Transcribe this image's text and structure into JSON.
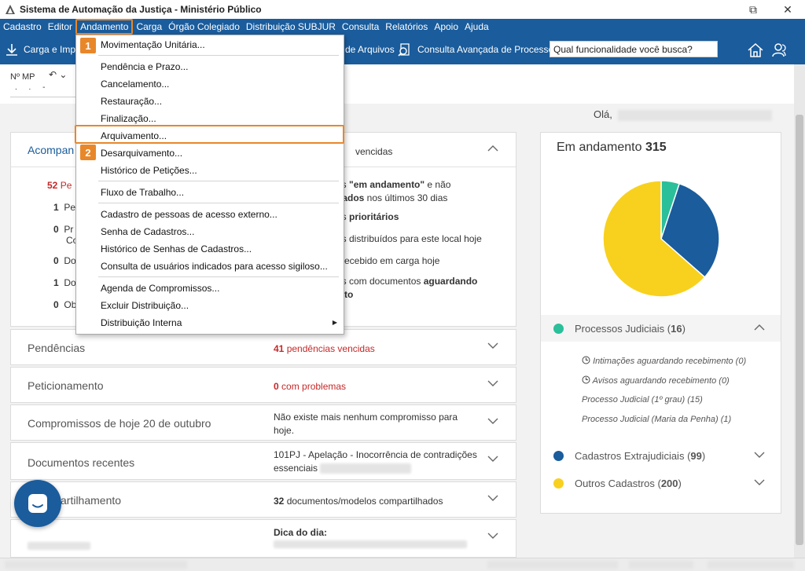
{
  "window": {
    "title": "Sistema de Automação da Justiça - Ministério Público",
    "restore": "⧉",
    "close": "✕"
  },
  "menubar": {
    "items": [
      "Cadastro",
      "Editor",
      "Andamento",
      "Carga",
      "Órgão Colegiado",
      "Distribuição SUBJUR",
      "Consulta",
      "Relatórios",
      "Apoio",
      "Ajuda"
    ],
    "active": "Andamento"
  },
  "toolbar": {
    "carga": "Carga e Impo",
    "arquivos": "de Arquivos",
    "consulta": "Consulta Avançada de Processos",
    "search_value": "Qual funcionalidade você busca?"
  },
  "subheader": {
    "nmp_label": "Nº MP",
    "nmp_mask": ". . -"
  },
  "greeting": "Olá,",
  "dropdown": {
    "items": [
      {
        "label": "Movimentação Unitária..."
      },
      {
        "label": "Pendência e Prazo..."
      },
      {
        "label": "Cancelamento..."
      },
      {
        "label": "Restauração..."
      },
      {
        "label": "Finalização..."
      },
      {
        "label": "Arquivamento..."
      },
      {
        "label": "Desarquivamento..."
      },
      {
        "label": "Histórico de Petições..."
      },
      {
        "label": "Fluxo de Trabalho..."
      },
      {
        "label": "Cadastro de pessoas de acesso externo..."
      },
      {
        "label": "Senha de Cadastros..."
      },
      {
        "label": "Histórico de Senhas de Cadastros..."
      },
      {
        "label": "Consulta de usuários indicados para acesso sigiloso..."
      },
      {
        "label": "Agenda de Compromissos..."
      },
      {
        "label": "Excluir Distribuição..."
      },
      {
        "label": "Distribuição Interna"
      }
    ],
    "badges": [
      "1",
      "2"
    ]
  },
  "acompanhamento": {
    "title": "Acompan",
    "header_info": "vencidas",
    "rows": [
      {
        "count": "52",
        "label": "Pe",
        "info": ""
      },
      {
        "count": "1",
        "label": "Pe",
        "info": ""
      },
      {
        "count": "0",
        "label": "Pr",
        "label2": "Co",
        "info": ""
      },
      {
        "count": "0",
        "label": "Do",
        "info": ""
      },
      {
        "count": "1",
        "label": "Do",
        "info": ""
      },
      {
        "count": "0",
        "label": "Ob",
        "info": ""
      }
    ],
    "info_lines": {
      "l1a": "ros ",
      "l1b": "\"em andamento\"",
      "l1c": " e não",
      "l2a": "ntados",
      "l2b": " nos últimos 30 dias",
      "l3a": "ros ",
      "l3b": "prioritários",
      "l4": "ros distribuídos para este local hoje",
      "l5": "o recebido em carga hoje",
      "l6a": "ros com documentos ",
      "l6b": "aguardando",
      "l7": "ento"
    }
  },
  "cards": [
    {
      "title": "Pendências",
      "info_count": "41",
      "info_text": " pendências vencidas"
    },
    {
      "title": "Peticionamento",
      "info_count": "0",
      "info_text": " com problemas"
    },
    {
      "title": "Compromissos de hoje 20 de outubro",
      "info_text": "Não existe mais nenhum compromisso para hoje."
    },
    {
      "title": "Documentos recentes",
      "info_text": "101PJ - Apelação - Inocorrência de contradições essenciais"
    },
    {
      "title": "artilhamento",
      "info_count": "32",
      "info_text": " documentos/modelos compartilhados"
    },
    {
      "title": "",
      "info_text": "Dica do dia:"
    }
  ],
  "right_panel": {
    "title": "Em andamento",
    "total": "315",
    "groups": [
      {
        "name": "Processos Judiciais",
        "count": "16",
        "color": "#2bbf9a"
      },
      {
        "name": "Cadastros Extrajudiciais",
        "count": "99",
        "color": "#1a5c9c"
      },
      {
        "name": "Outros Cadastros",
        "count": "200",
        "color": "#f8d11e"
      }
    ],
    "subitems": [
      "Intimações aguardando recebimento (0)",
      "Avisos aguardando recebimento (0)",
      "Processo Judicial (1º grau) (15)",
      "Processo Judicial (Maria da Penha) (1)"
    ]
  },
  "chart_data": {
    "type": "pie",
    "categories": [
      "Processos Judiciais",
      "Cadastros Extrajudiciais",
      "Outros Cadastros"
    ],
    "values": [
      16,
      99,
      200
    ],
    "colors": [
      "#2bbf9a",
      "#1a5c9c",
      "#f8d11e"
    ]
  }
}
